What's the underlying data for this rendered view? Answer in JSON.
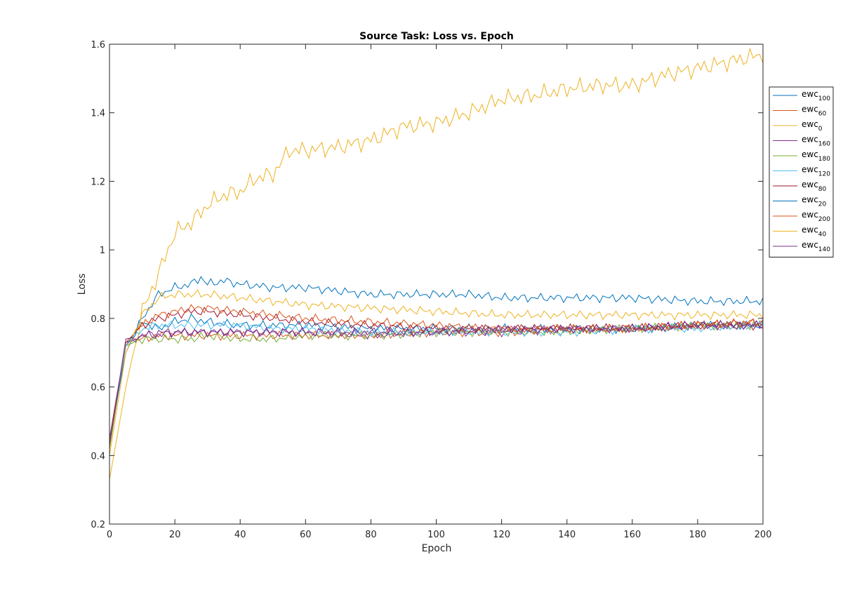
{
  "chart_data": {
    "type": "line",
    "title": "Source Task: Loss vs. Epoch",
    "xlabel": "Epoch",
    "ylabel": "Loss",
    "xlim": [
      0,
      200
    ],
    "ylim": [
      0.2,
      1.6
    ],
    "xticks": [
      "0",
      "20",
      "40",
      "60",
      "80",
      "100",
      "120",
      "140",
      "160",
      "180",
      "200"
    ],
    "yticks": [
      "0.2",
      "0.4",
      "0.6",
      "0.8",
      "1",
      "1.2",
      "1.4",
      "1.6"
    ],
    "grid": false,
    "legend_position": "top-right",
    "series": [
      {
        "name": "ewc",
        "sub": "100",
        "color": "#0072BD",
        "x": [
          0,
          5,
          10,
          15,
          20,
          25,
          30,
          40,
          50,
          60,
          80,
          100,
          120,
          140,
          160,
          180,
          200
        ],
        "y": [
          0.44,
          0.72,
          0.79,
          0.77,
          0.79,
          0.8,
          0.79,
          0.78,
          0.78,
          0.78,
          0.77,
          0.77,
          0.77,
          0.77,
          0.77,
          0.78,
          0.78
        ]
      },
      {
        "name": "ewc",
        "sub": "60",
        "color": "#D95319",
        "x": [
          0,
          5,
          10,
          15,
          20,
          25,
          30,
          40,
          50,
          60,
          80,
          100,
          120,
          140,
          160,
          180,
          200
        ],
        "y": [
          0.42,
          0.73,
          0.74,
          0.75,
          0.75,
          0.75,
          0.75,
          0.75,
          0.75,
          0.75,
          0.75,
          0.76,
          0.76,
          0.77,
          0.77,
          0.78,
          0.79
        ]
      },
      {
        "name": "ewc",
        "sub": "0",
        "color": "#EDB120",
        "x": [
          0,
          5,
          10,
          15,
          20,
          25,
          30,
          35,
          40,
          45,
          50,
          55,
          60,
          70,
          80,
          90,
          100,
          110,
          120,
          130,
          140,
          150,
          160,
          170,
          180,
          190,
          200
        ],
        "y": [
          0.33,
          0.6,
          0.82,
          0.93,
          1.05,
          1.08,
          1.13,
          1.16,
          1.17,
          1.21,
          1.22,
          1.29,
          1.29,
          1.3,
          1.32,
          1.36,
          1.37,
          1.4,
          1.44,
          1.45,
          1.47,
          1.48,
          1.48,
          1.51,
          1.53,
          1.55,
          1.57
        ]
      },
      {
        "name": "ewc",
        "sub": "160",
        "color": "#7E2F8E",
        "x": [
          0,
          5,
          10,
          15,
          20,
          25,
          30,
          40,
          50,
          60,
          80,
          100,
          120,
          140,
          160,
          180,
          200
        ],
        "y": [
          0.43,
          0.73,
          0.75,
          0.75,
          0.76,
          0.76,
          0.76,
          0.76,
          0.76,
          0.76,
          0.75,
          0.76,
          0.76,
          0.77,
          0.77,
          0.78,
          0.78
        ]
      },
      {
        "name": "ewc",
        "sub": "180",
        "color": "#77AC30",
        "x": [
          0,
          5,
          10,
          15,
          20,
          25,
          30,
          40,
          50,
          60,
          80,
          100,
          120,
          140,
          160,
          180,
          200
        ],
        "y": [
          0.42,
          0.72,
          0.74,
          0.74,
          0.74,
          0.74,
          0.75,
          0.74,
          0.74,
          0.75,
          0.75,
          0.76,
          0.76,
          0.76,
          0.77,
          0.78,
          0.78
        ]
      },
      {
        "name": "ewc",
        "sub": "120",
        "color": "#4DBEEE",
        "x": [
          0,
          5,
          10,
          15,
          20,
          25,
          30,
          40,
          50,
          60,
          80,
          100,
          120,
          140,
          160,
          180,
          200
        ],
        "y": [
          0.44,
          0.72,
          0.77,
          0.78,
          0.78,
          0.78,
          0.78,
          0.78,
          0.77,
          0.77,
          0.76,
          0.76,
          0.76,
          0.76,
          0.77,
          0.77,
          0.78
        ]
      },
      {
        "name": "ewc",
        "sub": "80",
        "color": "#A2142F",
        "x": [
          0,
          5,
          10,
          15,
          20,
          25,
          30,
          40,
          50,
          60,
          80,
          100,
          120,
          140,
          160,
          180,
          200
        ],
        "y": [
          0.45,
          0.73,
          0.78,
          0.8,
          0.81,
          0.82,
          0.82,
          0.81,
          0.8,
          0.79,
          0.78,
          0.77,
          0.77,
          0.77,
          0.77,
          0.78,
          0.78
        ]
      },
      {
        "name": "ewc",
        "sub": "20",
        "color": "#0072BD",
        "x": [
          0,
          5,
          10,
          15,
          20,
          25,
          28,
          30,
          35,
          40,
          50,
          60,
          70,
          80,
          100,
          110,
          120,
          140,
          160,
          180,
          200
        ],
        "y": [
          0.45,
          0.7,
          0.8,
          0.87,
          0.89,
          0.9,
          0.92,
          0.9,
          0.91,
          0.9,
          0.89,
          0.89,
          0.88,
          0.87,
          0.87,
          0.87,
          0.86,
          0.86,
          0.86,
          0.85,
          0.85
        ]
      },
      {
        "name": "ewc",
        "sub": "200",
        "color": "#D95319",
        "x": [
          0,
          5,
          10,
          15,
          20,
          25,
          30,
          40,
          50,
          60,
          80,
          100,
          120,
          140,
          160,
          180,
          200
        ],
        "y": [
          0.44,
          0.73,
          0.78,
          0.81,
          0.82,
          0.83,
          0.83,
          0.82,
          0.81,
          0.8,
          0.79,
          0.78,
          0.77,
          0.77,
          0.77,
          0.78,
          0.79
        ]
      },
      {
        "name": "ewc",
        "sub": "40",
        "color": "#EDB120",
        "x": [
          0,
          5,
          10,
          15,
          20,
          25,
          30,
          40,
          50,
          60,
          80,
          100,
          120,
          140,
          160,
          180,
          200
        ],
        "y": [
          0.4,
          0.7,
          0.81,
          0.86,
          0.87,
          0.87,
          0.87,
          0.86,
          0.85,
          0.84,
          0.83,
          0.82,
          0.81,
          0.81,
          0.81,
          0.81,
          0.81
        ]
      },
      {
        "name": "ewc",
        "sub": "140",
        "color": "#7E2F8E",
        "x": [
          0,
          5,
          10,
          15,
          20,
          25,
          30,
          40,
          50,
          60,
          80,
          100,
          120,
          140,
          160,
          180,
          200
        ],
        "y": [
          0.43,
          0.74,
          0.75,
          0.76,
          0.76,
          0.76,
          0.76,
          0.76,
          0.76,
          0.76,
          0.76,
          0.76,
          0.77,
          0.77,
          0.77,
          0.78,
          0.78
        ]
      }
    ]
  }
}
